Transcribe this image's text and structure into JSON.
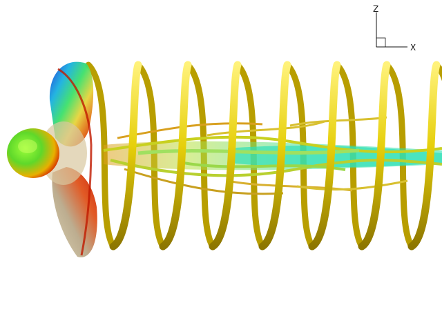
{
  "figure": {
    "axis_triad": {
      "z_label": "Z",
      "x_label": "X"
    },
    "colors": {
      "background": "#ffffff",
      "vortex_tubes": "#e6cf0a",
      "vortex_tubes_dark": "#9c8400",
      "hub": "#ff2a00",
      "wake_core": "#29d9a0"
    },
    "objects": [
      {
        "name": "propeller-hub",
        "color": "hub"
      },
      {
        "name": "propeller-blades",
        "colormap": "jet"
      },
      {
        "name": "tip-vortex-helix",
        "color": "vortex_tubes"
      },
      {
        "name": "hub-vortex-wake",
        "color": "wake_core"
      }
    ]
  }
}
